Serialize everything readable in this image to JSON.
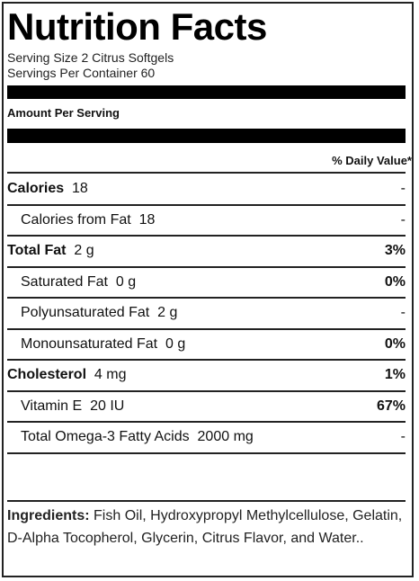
{
  "title": "Nutrition Facts",
  "serving_size": "Serving Size 2 Citrus Softgels",
  "servings_per_container": "Servings Per Container 60",
  "amount_per_serving": "Amount Per Serving",
  "daily_value_header": "% Daily Value*",
  "rows": [
    {
      "name": "Calories",
      "amount": "18",
      "dv": "-"
    },
    {
      "name": "Calories from Fat",
      "amount": "18",
      "dv": "-"
    },
    {
      "name": "Total Fat",
      "amount": "2 g",
      "dv": "3%"
    },
    {
      "name": "Saturated Fat",
      "amount": "0 g",
      "dv": "0%"
    },
    {
      "name": "Polyunsaturated Fat",
      "amount": "2 g",
      "dv": "-"
    },
    {
      "name": "Monounsaturated Fat",
      "amount": "0 g",
      "dv": "0%"
    },
    {
      "name": "Cholesterol",
      "amount": "4 mg",
      "dv": "1%"
    },
    {
      "name": "Vitamin E",
      "amount": "20 IU",
      "dv": "67%"
    },
    {
      "name": "Total Omega-3 Fatty Acids",
      "amount": "2000 mg",
      "dv": "-"
    }
  ],
  "ingredients_label": "Ingredients:",
  "ingredients_text": "Fish Oil, Hydroxypropyl Methylcellulose, Gelatin, D-Alpha Tocopherol, Glycerin, Citrus Flavor, and Water.."
}
